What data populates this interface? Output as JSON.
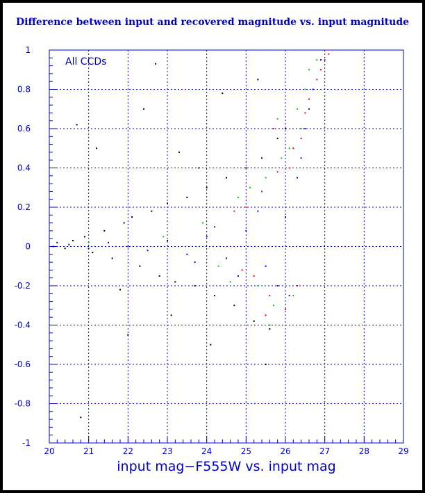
{
  "chart_data": {
    "type": "scatter",
    "title": "Difference between input and recovered magnitude vs. input magnitude",
    "xlabel": "input mag−F555W vs. input mag",
    "ylabel": "",
    "annotation": "All CCDs",
    "xlim": [
      20,
      29
    ],
    "ylim": [
      -1,
      1
    ],
    "x_ticks": [
      20,
      21,
      22,
      23,
      24,
      25,
      26,
      27,
      28,
      29
    ],
    "y_ticks": [
      -1,
      -0.8,
      -0.6,
      -0.4,
      -0.2,
      0,
      0.2,
      0.4,
      0.6,
      0.8,
      1
    ],
    "grid": true,
    "colors": {
      "axis": "#0000cc",
      "grid": "#0000cc",
      "text": "#0000cc"
    },
    "series": [
      {
        "color": "#000000",
        "values": [
          [
            20.2,
            0.02
          ],
          [
            20.4,
            -0.01
          ],
          [
            20.6,
            0.03
          ],
          [
            20.9,
            0.05
          ],
          [
            21.1,
            -0.03
          ],
          [
            21.4,
            0.08
          ],
          [
            21.6,
            -0.06
          ],
          [
            21.9,
            0.12
          ],
          [
            22.1,
            0.15
          ],
          [
            22.3,
            -0.1
          ],
          [
            22.6,
            0.18
          ],
          [
            22.8,
            -0.15
          ],
          [
            23.0,
            0.22
          ],
          [
            23.2,
            -0.18
          ],
          [
            23.5,
            0.25
          ],
          [
            23.7,
            -0.2
          ],
          [
            24.0,
            0.3
          ],
          [
            24.2,
            -0.25
          ],
          [
            24.5,
            0.35
          ],
          [
            24.7,
            -0.3
          ],
          [
            25.0,
            0.4
          ],
          [
            25.2,
            -0.38
          ],
          [
            25.4,
            0.45
          ],
          [
            25.6,
            -0.42
          ],
          [
            25.8,
            0.55
          ],
          [
            26.0,
            0.6
          ],
          [
            20.7,
            0.62
          ],
          [
            21.2,
            0.5
          ],
          [
            22.4,
            0.7
          ],
          [
            23.3,
            0.48
          ],
          [
            24.4,
            0.78
          ],
          [
            25.3,
            0.85
          ],
          [
            22.7,
            0.93
          ],
          [
            21.8,
            -0.22
          ],
          [
            23.1,
            -0.35
          ],
          [
            24.1,
            -0.5
          ],
          [
            25.5,
            -0.6
          ],
          [
            20.8,
            -0.87
          ],
          [
            22.0,
            -0.45
          ],
          [
            23.8,
            0.4
          ]
        ]
      },
      {
        "color": "#00cc00",
        "values": [
          [
            25.1,
            0.3
          ],
          [
            25.3,
            -0.2
          ],
          [
            25.5,
            0.35
          ],
          [
            25.7,
            -0.3
          ],
          [
            25.9,
            0.45
          ],
          [
            26.1,
            0.5
          ],
          [
            26.3,
            0.7
          ],
          [
            26.5,
            0.8
          ],
          [
            24.8,
            0.25
          ],
          [
            24.6,
            -0.18
          ],
          [
            26.2,
            -0.25
          ],
          [
            26.4,
            0.6
          ],
          [
            26.6,
            0.9
          ],
          [
            25.6,
            -0.4
          ],
          [
            23.9,
            0.12
          ],
          [
            24.3,
            -0.1
          ],
          [
            26.8,
            0.95
          ],
          [
            22.9,
            0.05
          ],
          [
            25.8,
            0.65
          ],
          [
            21.0,
            0.02
          ]
        ]
      },
      {
        "color": "#ff0000",
        "values": [
          [
            25.0,
            0.2
          ],
          [
            25.2,
            -0.15
          ],
          [
            25.4,
            0.28
          ],
          [
            25.6,
            -0.25
          ],
          [
            25.8,
            0.38
          ],
          [
            26.0,
            -0.32
          ],
          [
            26.2,
            0.5
          ],
          [
            26.4,
            0.55
          ],
          [
            26.6,
            0.75
          ],
          [
            26.8,
            0.85
          ],
          [
            27.0,
            0.95
          ],
          [
            24.7,
            0.18
          ],
          [
            24.9,
            -0.12
          ],
          [
            26.1,
            0.4
          ],
          [
            26.3,
            -0.2
          ],
          [
            25.7,
            0.6
          ],
          [
            26.5,
            0.68
          ],
          [
            25.5,
            -0.35
          ],
          [
            26.9,
            0.9
          ],
          [
            27.1,
            0.98
          ]
        ]
      },
      {
        "color": "#0000ff",
        "values": [
          [
            20.1,
            0.0
          ],
          [
            20.5,
            0.01
          ],
          [
            21.0,
            -0.01
          ],
          [
            21.5,
            0.02
          ],
          [
            22.0,
            0.0
          ],
          [
            22.5,
            -0.02
          ],
          [
            23.0,
            0.03
          ],
          [
            23.5,
            -0.04
          ],
          [
            24.0,
            0.05
          ],
          [
            24.5,
            -0.06
          ],
          [
            25.0,
            0.08
          ],
          [
            25.5,
            -0.1
          ],
          [
            26.0,
            0.15
          ],
          [
            26.3,
            0.35
          ],
          [
            26.5,
            0.6
          ],
          [
            26.7,
            0.8
          ],
          [
            26.9,
            0.95
          ],
          [
            25.8,
            -0.2
          ],
          [
            26.1,
            -0.25
          ],
          [
            25.3,
            0.18
          ],
          [
            24.8,
            -0.15
          ],
          [
            24.2,
            0.1
          ],
          [
            23.7,
            -0.08
          ],
          [
            26.4,
            0.45
          ],
          [
            26.6,
            0.7
          ]
        ]
      }
    ]
  }
}
